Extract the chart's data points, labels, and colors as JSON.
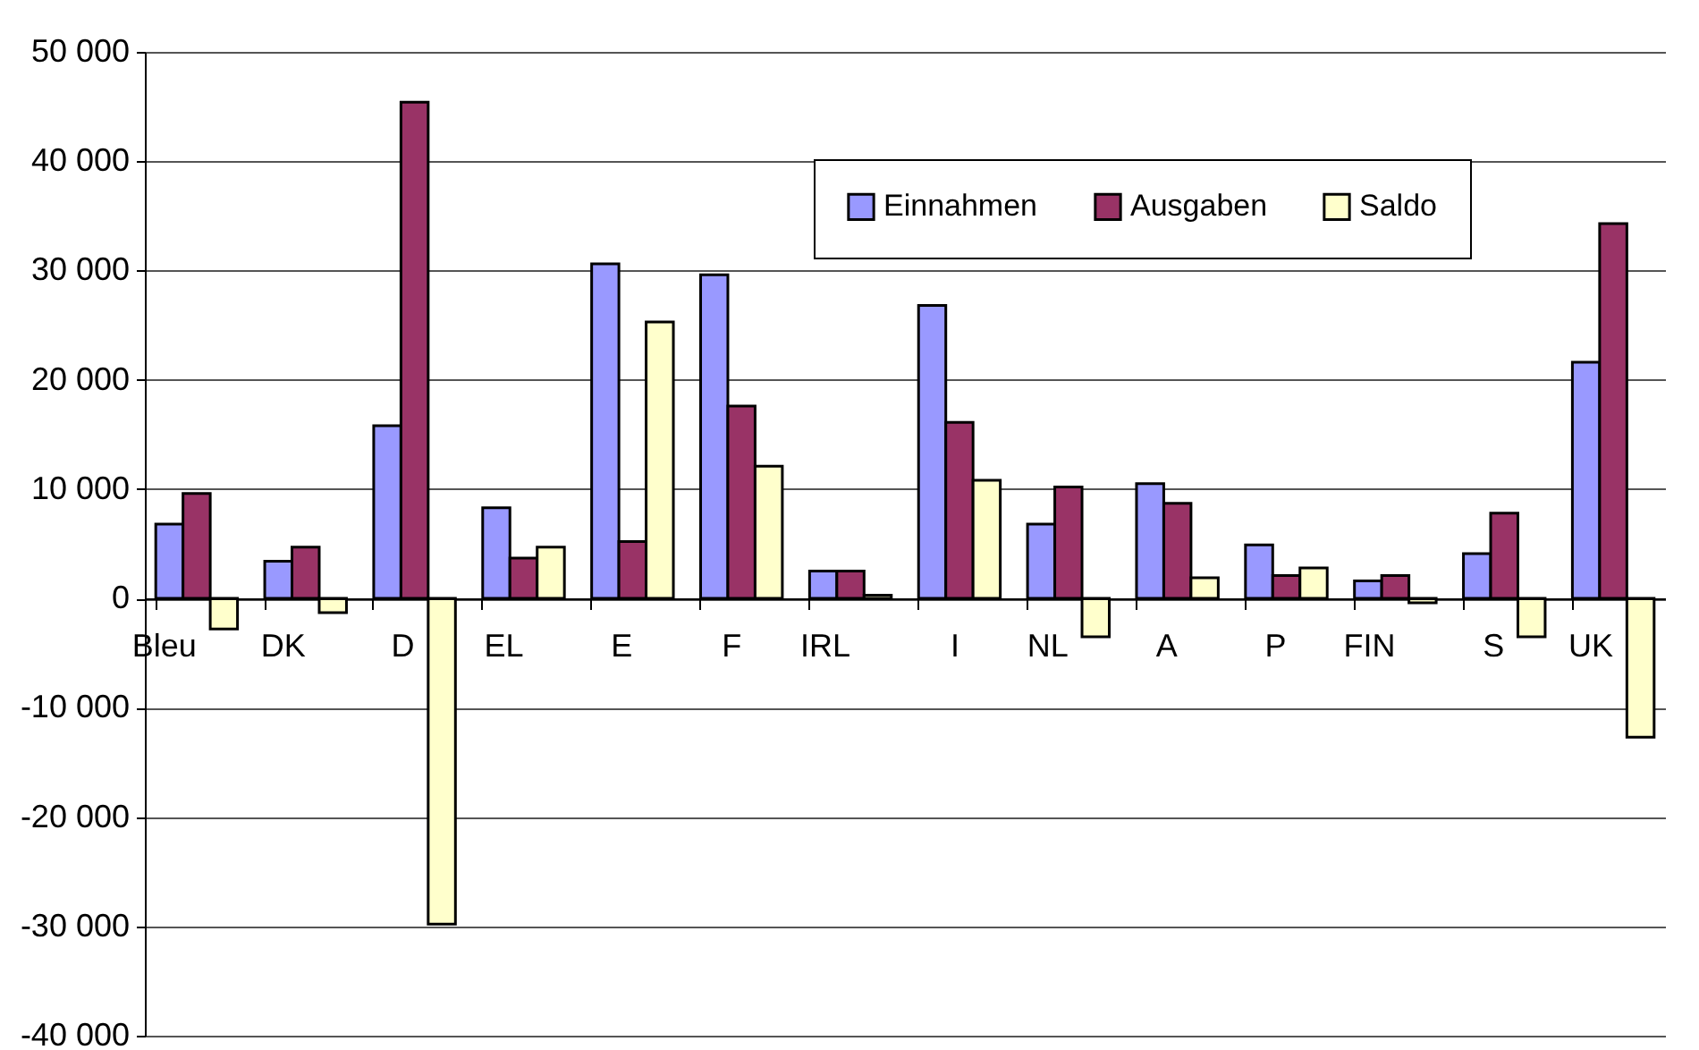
{
  "chart_data": {
    "type": "bar",
    "categories": [
      "Bleu",
      "DK",
      "D",
      "EL",
      "E",
      "F",
      "IRL",
      "I",
      "NL",
      "A",
      "P",
      "FIN",
      "S",
      "UK"
    ],
    "series": [
      {
        "name": "Einnahmen",
        "color": "#9999ff",
        "values": [
          6800,
          3400,
          15800,
          8300,
          30600,
          29600,
          2500,
          26800,
          6800,
          10500,
          4900,
          1600,
          4100,
          21600
        ]
      },
      {
        "name": "Ausgaben",
        "color": "#993366",
        "values": [
          9600,
          4700,
          45400,
          3700,
          5200,
          17600,
          2500,
          16100,
          10200,
          8700,
          2100,
          2100,
          7800,
          34300
        ]
      },
      {
        "name": "Saldo",
        "color": "#ffffcc",
        "values": [
          -2800,
          -1300,
          -29800,
          4700,
          25300,
          12100,
          300,
          10800,
          -3500,
          1900,
          2800,
          -400,
          -3500,
          -12700
        ]
      }
    ],
    "ylim": [
      -40000,
      50000
    ],
    "yticks": [
      {
        "value": -40000,
        "label": "-40 000"
      },
      {
        "value": -30000,
        "label": "-30 000"
      },
      {
        "value": -20000,
        "label": "-20 000"
      },
      {
        "value": -10000,
        "label": "-10 000"
      },
      {
        "value": 0,
        "label": "0"
      },
      {
        "value": 10000,
        "label": "10 000"
      },
      {
        "value": 20000,
        "label": "20 000"
      },
      {
        "value": 30000,
        "label": "30 000"
      },
      {
        "value": 40000,
        "label": "40 000"
      },
      {
        "value": 50000,
        "label": "50 000"
      }
    ],
    "grid": "y",
    "legend": "top right"
  }
}
